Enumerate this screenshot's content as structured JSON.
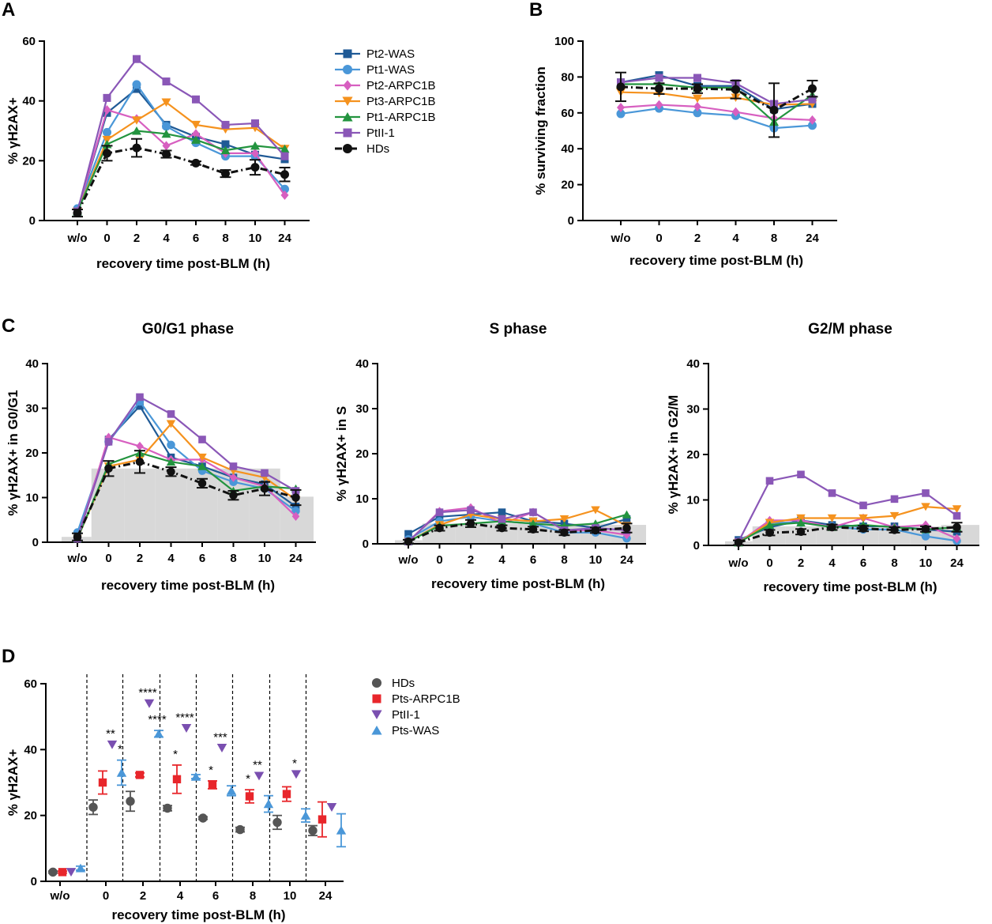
{
  "colors": {
    "Pt2-WAS": "#1f5a96",
    "Pt1-WAS": "#4a97d8",
    "Pt2-ARPC1B": "#d75fc0",
    "Pt3-ARPC1B": "#f5921e",
    "Pt1-ARPC1B": "#23943f",
    "PtII-1": "#8a57b7",
    "HDs": "#111111",
    "HDsD": "#555555",
    "Pts-ARPC1B": "#e8262b",
    "PtII-1D": "#7a4fb0",
    "Pts-WAS": "#4a97d8",
    "bar": "#d8d8d8"
  },
  "panels": {
    "A": "A",
    "B": "B",
    "C": "C",
    "D": "D"
  },
  "chart_data": [
    {
      "id": "A",
      "type": "line",
      "categories": [
        "w/o",
        "0",
        "2",
        "4",
        "6",
        "8",
        "10",
        "24"
      ],
      "ylabel": "% γH2AX+",
      "xlabel": "recovery time post-BLM (h)",
      "ylim": [
        0,
        60
      ],
      "yticks": [
        0,
        20,
        40,
        60
      ],
      "legend_position": "right",
      "series": [
        {
          "name": "Pt2-WAS",
          "marker": "square",
          "values": [
            3,
            36,
            44,
            32,
            28,
            25.5,
            22,
            20.5
          ]
        },
        {
          "name": "Pt1-WAS",
          "marker": "circle",
          "values": [
            4,
            29.5,
            45.5,
            31.5,
            26,
            21.5,
            21.5,
            10.5
          ]
        },
        {
          "name": "Pt2-ARPC1B",
          "marker": "diamond",
          "values": [
            3,
            37,
            34,
            25,
            29,
            22.5,
            22.5,
            8.5
          ]
        },
        {
          "name": "Pt3-ARPC1B",
          "marker": "tri-down",
          "values": [
            3,
            27,
            33.5,
            39.5,
            32,
            30.5,
            31,
            24
          ]
        },
        {
          "name": "Pt1-ARPC1B",
          "marker": "tri-up",
          "values": [
            3,
            25.5,
            30,
            29,
            27,
            23.5,
            25,
            24
          ]
        },
        {
          "name": "PtII-1",
          "marker": "square",
          "values": [
            3,
            41,
            54,
            46.5,
            40.5,
            32,
            32.5,
            21.5
          ]
        },
        {
          "name": "HDs",
          "marker": "circle",
          "dashed": true,
          "values": [
            2.5,
            22.5,
            24.3,
            22.2,
            19.2,
            15.7,
            17.8,
            15.4
          ],
          "errors": [
            1.2,
            2.5,
            3,
            1.2,
            0.6,
            1.2,
            2.5,
            2.3
          ]
        }
      ]
    },
    {
      "id": "B",
      "type": "line",
      "categories": [
        "w/o",
        "0",
        "2",
        "4",
        "8",
        "24"
      ],
      "ylabel": "% surviving fraction",
      "xlabel": "recovery time post-BLM (h)",
      "ylim": [
        0,
        100
      ],
      "yticks": [
        0,
        20,
        40,
        60,
        80,
        100
      ],
      "series": [
        {
          "name": "Pt2-WAS",
          "marker": "square",
          "values": [
            77,
            81,
            75,
            75,
            62,
            65
          ]
        },
        {
          "name": "Pt1-WAS",
          "marker": "circle",
          "values": [
            59.5,
            62.5,
            60,
            58.5,
            51.5,
            53
          ]
        },
        {
          "name": "Pt2-ARPC1B",
          "marker": "diamond",
          "values": [
            63,
            64.5,
            63.5,
            60.5,
            57,
            56
          ]
        },
        {
          "name": "Pt3-ARPC1B",
          "marker": "tri-down",
          "values": [
            71.5,
            71,
            68,
            68.5,
            64.5,
            65
          ]
        },
        {
          "name": "Pt1-ARPC1B",
          "marker": "tri-up",
          "values": [
            76,
            76,
            74,
            74,
            55,
            70
          ]
        },
        {
          "name": "PtII-1",
          "marker": "square",
          "values": [
            77,
            79.5,
            79.5,
            76.5,
            65,
            67.5
          ]
        },
        {
          "name": "HDs",
          "marker": "circle",
          "dashed": true,
          "values": [
            74.5,
            73.5,
            73.5,
            73,
            61.5,
            73.5
          ],
          "errors": [
            8,
            3,
            2.5,
            5,
            15,
            4.5
          ]
        }
      ]
    },
    {
      "id": "C1",
      "type": "line",
      "title": "G0/G1 phase",
      "categories": [
        "w/o",
        "0",
        "2",
        "4",
        "6",
        "8",
        "10",
        "24"
      ],
      "ylabel": "% γH2AX+ in G0/G1",
      "xlabel": "recovery time post-BLM (h)",
      "ylim": [
        0,
        40
      ],
      "yticks": [
        0,
        10,
        20,
        30,
        40
      ],
      "background_bars": [
        1.2,
        16.5,
        16.5,
        16.5,
        16.5,
        16.5,
        16.5,
        10.2
      ],
      "series": [
        {
          "name": "Pt2-WAS",
          "marker": "square",
          "values": [
            1.2,
            23,
            30.5,
            19,
            17,
            14.5,
            13,
            8
          ]
        },
        {
          "name": "Pt1-WAS",
          "marker": "circle",
          "values": [
            2.2,
            22.5,
            31.5,
            21.8,
            16,
            13.5,
            12,
            7
          ]
        },
        {
          "name": "Pt2-ARPC1B",
          "marker": "diamond",
          "values": [
            0.8,
            23.5,
            21.5,
            18.5,
            18.5,
            14.5,
            12.5,
            5.8
          ]
        },
        {
          "name": "Pt3-ARPC1B",
          "marker": "tri-down",
          "values": [
            0.8,
            17,
            18.5,
            26.5,
            19,
            16,
            14.5,
            9.5
          ]
        },
        {
          "name": "Pt1-ARPC1B",
          "marker": "tri-up",
          "values": [
            0.8,
            17.5,
            20,
            18,
            17,
            11.5,
            12.5,
            12
          ]
        },
        {
          "name": "PtII-1",
          "marker": "square",
          "values": [
            0.8,
            22.5,
            32.5,
            28.7,
            23,
            17,
            15.5,
            11.5
          ]
        },
        {
          "name": "HDs",
          "marker": "circle",
          "dashed": true,
          "values": [
            1.2,
            16.5,
            18,
            15.8,
            13.2,
            10.5,
            12,
            10
          ],
          "errors": [
            0.8,
            1.7,
            2.5,
            1,
            1,
            1,
            1.5,
            1.7
          ]
        }
      ]
    },
    {
      "id": "C2",
      "type": "line",
      "title": "S phase",
      "categories": [
        "w/o",
        "0",
        "2",
        "4",
        "6",
        "8",
        "10",
        "24"
      ],
      "ylabel": "% γH2AX+ in S",
      "xlabel": "recovery time post-BLM (h)",
      "ylim": [
        0,
        40
      ],
      "yticks": [
        0,
        10,
        20,
        30,
        40
      ],
      "background_bars": [
        0.8,
        4.5,
        4.5,
        4.5,
        4.5,
        4.5,
        4.5,
        4.2
      ],
      "series": [
        {
          "name": "Pt2-WAS",
          "marker": "square",
          "values": [
            2.2,
            6,
            6.5,
            7,
            5,
            4.5,
            3.5,
            5.5
          ]
        },
        {
          "name": "Pt1-WAS",
          "marker": "circle",
          "values": [
            1,
            5,
            6,
            5,
            4.5,
            2.5,
            2.5,
            1.2
          ]
        },
        {
          "name": "Pt2-ARPC1B",
          "marker": "diamond",
          "values": [
            0.5,
            7.2,
            8,
            4.5,
            7,
            3,
            3,
            2
          ]
        },
        {
          "name": "Pt3-ARPC1B",
          "marker": "tri-down",
          "values": [
            0.5,
            4.2,
            6.5,
            5.5,
            5,
            5.5,
            7.5,
            4
          ]
        },
        {
          "name": "Pt1-ARPC1B",
          "marker": "tri-up",
          "values": [
            0.5,
            4,
            4.5,
            5,
            4.5,
            4,
            4.5,
            6.5
          ]
        },
        {
          "name": "PtII-1",
          "marker": "square",
          "values": [
            0.5,
            7,
            7.5,
            5.5,
            7,
            3,
            3.5,
            3
          ]
        },
        {
          "name": "HDs",
          "marker": "circle",
          "dashed": true,
          "values": [
            0.5,
            3.5,
            4.5,
            3.5,
            3.2,
            2.5,
            3,
            3.5
          ],
          "errors": [
            0.4,
            0.6,
            0.8,
            0.6,
            0.6,
            0.6,
            0.6,
            1
          ]
        }
      ]
    },
    {
      "id": "C3",
      "type": "line",
      "title": "G2/M phase",
      "categories": [
        "w/o",
        "0",
        "2",
        "4",
        "6",
        "8",
        "10",
        "24"
      ],
      "ylabel": "% γH2AX+ in G2/M",
      "xlabel": "recovery time post-BLM (h)",
      "ylim": [
        0,
        40
      ],
      "yticks": [
        0,
        10,
        20,
        30,
        40
      ],
      "background_bars": [
        0.9,
        4.2,
        4.2,
        4.2,
        4.2,
        4.2,
        4.2,
        4.5
      ],
      "series": [
        {
          "name": "Pt2-WAS",
          "marker": "square",
          "values": [
            1.2,
            4,
            5.5,
            4.5,
            4.2,
            4.2,
            3.5,
            3
          ]
        },
        {
          "name": "Pt1-WAS",
          "marker": "circle",
          "values": [
            0.8,
            5,
            5,
            4.2,
            3.5,
            3.5,
            2,
            1
          ]
        },
        {
          "name": "Pt2-ARPC1B",
          "marker": "diamond",
          "values": [
            0.6,
            5.5,
            5.5,
            4,
            6,
            4,
            4.5,
            1.5
          ]
        },
        {
          "name": "Pt3-ARPC1B",
          "marker": "tri-down",
          "values": [
            0.6,
            5,
            6,
            6,
            6,
            6.5,
            8.5,
            8
          ]
        },
        {
          "name": "Pt1-ARPC1B",
          "marker": "tri-up",
          "values": [
            0.6,
            4.5,
            5,
            4,
            4.5,
            4,
            3.5,
            4
          ]
        },
        {
          "name": "PtII-1",
          "marker": "square",
          "values": [
            0.8,
            14.2,
            15.6,
            11.5,
            8.8,
            10.2,
            11.5,
            6.5
          ]
        },
        {
          "name": "HDs",
          "marker": "circle",
          "dashed": true,
          "values": [
            0.6,
            2.8,
            3,
            4,
            3.7,
            3.4,
            3.6,
            4
          ],
          "errors": [
            0.5,
            0.6,
            0.6,
            0.6,
            0.6,
            0.6,
            0.6,
            1
          ]
        }
      ]
    },
    {
      "id": "D",
      "type": "scatter",
      "categories": [
        "w/o",
        "0",
        "2",
        "4",
        "6",
        "8",
        "10",
        "24"
      ],
      "ylabel": "% γH2AX+",
      "xlabel": "recovery time post-BLM (h)",
      "ylim": [
        0,
        60
      ],
      "yticks": [
        0,
        20,
        40,
        60
      ],
      "legend_position": "right",
      "series": [
        {
          "name": "HDs",
          "marker": "circle",
          "values": [
            2.8,
            22.5,
            24.3,
            22.2,
            19.2,
            15.7,
            17.9,
            15.4
          ],
          "errors": [
            0.3,
            2.2,
            3,
            0.8,
            0.4,
            0.7,
            2.1,
            1.5
          ]
        },
        {
          "name": "Pts-ARPC1B",
          "marker": "square",
          "values": [
            2.8,
            30,
            32.3,
            31,
            29.3,
            25.8,
            26.5,
            18.8
          ],
          "errors": [
            0.3,
            3.5,
            0.6,
            4.3,
            1.2,
            2,
            2.2,
            5.3
          ]
        },
        {
          "name": "PtII-1",
          "marker": "tri-down",
          "values": [
            2.8,
            41.5,
            54,
            46.5,
            40.5,
            32,
            32.5,
            22.5
          ],
          "errors": null
        },
        {
          "name": "Pts-WAS",
          "marker": "tri-up",
          "values": [
            4,
            33,
            44.8,
            31.8,
            27.5,
            23.5,
            20,
            15.5
          ],
          "errors": [
            0.6,
            3.8,
            1,
            0.6,
            1.5,
            2.5,
            2,
            5
          ]
        }
      ],
      "significance": [
        {
          "category": "0",
          "series": "PtII-1",
          "label": "**"
        },
        {
          "category": "0",
          "series": "Pts-WAS",
          "label": "*"
        },
        {
          "category": "2",
          "series": "PtII-1",
          "label": "****"
        },
        {
          "category": "2",
          "series": "Pts-WAS",
          "label": "****"
        },
        {
          "category": "4",
          "series": "Pts-ARPC1B",
          "label": "*"
        },
        {
          "category": "4",
          "series": "PtII-1",
          "label": "****"
        },
        {
          "category": "6",
          "series": "Pts-ARPC1B",
          "label": "*"
        },
        {
          "category": "6",
          "series": "PtII-1",
          "label": "***"
        },
        {
          "category": "8",
          "series": "Pts-ARPC1B",
          "label": "*"
        },
        {
          "category": "8",
          "series": "PtII-1",
          "label": "**"
        },
        {
          "category": "10",
          "series": "PtII-1",
          "label": "*"
        }
      ]
    }
  ]
}
